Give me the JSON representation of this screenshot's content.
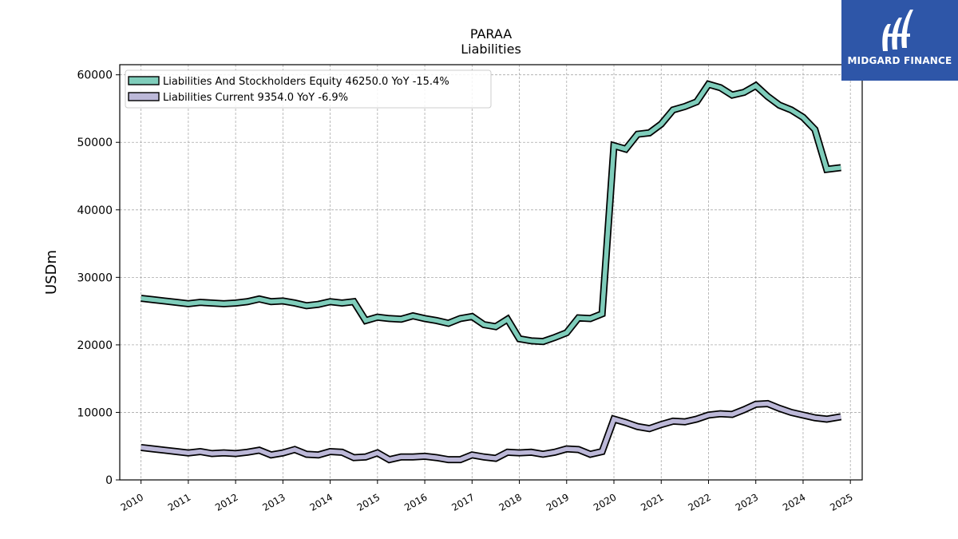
{
  "brand": {
    "name": "MIDGARD FINANCE",
    "logo_color": "#2e56a8"
  },
  "chart_data": {
    "type": "line",
    "title": "PARAA",
    "subtitle": "Liabilities",
    "xlabel": "",
    "ylabel": "USDm",
    "xlim": [
      2009.55,
      2025.25
    ],
    "ylim": [
      0,
      61500
    ],
    "yticks": [
      0,
      10000,
      20000,
      30000,
      40000,
      50000,
      60000
    ],
    "ytick_labels": [
      "0",
      "10000",
      "20000",
      "30000",
      "40000",
      "50000",
      "60000"
    ],
    "xticks": [
      2010,
      2011,
      2012,
      2013,
      2014,
      2015,
      2016,
      2017,
      2018,
      2019,
      2020,
      2021,
      2022,
      2023,
      2024,
      2025
    ],
    "xtick_labels": [
      "2010",
      "2011",
      "2012",
      "2013",
      "2014",
      "2015",
      "2016",
      "2017",
      "2018",
      "2019",
      "2020",
      "2021",
      "2022",
      "2023",
      "2024",
      "2025"
    ],
    "grid": true,
    "legend_position": "top-left",
    "series": [
      {
        "name": "Liabilities And Stockholders Equity",
        "legend_label": "Liabilities And Stockholders Equity  46250.0 YoY -15.4%",
        "color": "#7fcdbb",
        "points": [
          [
            2010.0,
            26900
          ],
          [
            2010.25,
            26700
          ],
          [
            2010.5,
            26500
          ],
          [
            2010.75,
            26300
          ],
          [
            2011.0,
            26100
          ],
          [
            2011.25,
            26300
          ],
          [
            2011.5,
            26200
          ],
          [
            2011.75,
            26100
          ],
          [
            2012.0,
            26200
          ],
          [
            2012.25,
            26400
          ],
          [
            2012.5,
            26800
          ],
          [
            2012.75,
            26400
          ],
          [
            2013.0,
            26500
          ],
          [
            2013.25,
            26200
          ],
          [
            2013.5,
            25800
          ],
          [
            2013.75,
            26000
          ],
          [
            2014.0,
            26400
          ],
          [
            2014.25,
            26200
          ],
          [
            2014.5,
            26400
          ],
          [
            2014.75,
            23600
          ],
          [
            2015.0,
            24100
          ],
          [
            2015.25,
            23900
          ],
          [
            2015.5,
            23800
          ],
          [
            2015.75,
            24300
          ],
          [
            2016.0,
            23900
          ],
          [
            2016.25,
            23600
          ],
          [
            2016.5,
            23200
          ],
          [
            2016.75,
            23900
          ],
          [
            2017.0,
            24200
          ],
          [
            2017.25,
            23000
          ],
          [
            2017.5,
            22700
          ],
          [
            2017.75,
            23800
          ],
          [
            2018.0,
            20900
          ],
          [
            2018.25,
            20600
          ],
          [
            2018.5,
            20500
          ],
          [
            2018.75,
            21100
          ],
          [
            2019.0,
            21800
          ],
          [
            2019.25,
            24000
          ],
          [
            2019.5,
            23900
          ],
          [
            2019.75,
            24600
          ],
          [
            2020.0,
            49500
          ],
          [
            2020.25,
            49000
          ],
          [
            2020.5,
            51200
          ],
          [
            2020.75,
            51400
          ],
          [
            2021.0,
            52700
          ],
          [
            2021.25,
            54800
          ],
          [
            2021.5,
            55300
          ],
          [
            2021.75,
            56000
          ],
          [
            2022.0,
            58600
          ],
          [
            2022.25,
            58100
          ],
          [
            2022.5,
            57000
          ],
          [
            2022.75,
            57400
          ],
          [
            2023.0,
            58400
          ],
          [
            2023.25,
            56800
          ],
          [
            2023.5,
            55500
          ],
          [
            2023.75,
            54800
          ],
          [
            2024.0,
            53700
          ],
          [
            2024.25,
            51900
          ],
          [
            2024.5,
            46000
          ],
          [
            2024.8,
            46250
          ]
        ]
      },
      {
        "name": "Liabilities Current",
        "legend_label": "Liabilities Current  9354.0 YoY -6.9%",
        "color": "#bcb8d8",
        "points": [
          [
            2010.0,
            4800
          ],
          [
            2010.25,
            4600
          ],
          [
            2010.5,
            4400
          ],
          [
            2010.75,
            4200
          ],
          [
            2011.0,
            4000
          ],
          [
            2011.25,
            4200
          ],
          [
            2011.5,
            3900
          ],
          [
            2011.75,
            4000
          ],
          [
            2012.0,
            3900
          ],
          [
            2012.25,
            4100
          ],
          [
            2012.5,
            4400
          ],
          [
            2012.75,
            3700
          ],
          [
            2013.0,
            4000
          ],
          [
            2013.25,
            4500
          ],
          [
            2013.5,
            3800
          ],
          [
            2013.75,
            3700
          ],
          [
            2014.0,
            4200
          ],
          [
            2014.25,
            4100
          ],
          [
            2014.5,
            3300
          ],
          [
            2014.75,
            3400
          ],
          [
            2015.0,
            4000
          ],
          [
            2015.25,
            3000
          ],
          [
            2015.5,
            3400
          ],
          [
            2015.75,
            3400
          ],
          [
            2016.0,
            3500
          ],
          [
            2016.25,
            3300
          ],
          [
            2016.5,
            3000
          ],
          [
            2016.75,
            3000
          ],
          [
            2017.0,
            3700
          ],
          [
            2017.25,
            3400
          ],
          [
            2017.5,
            3200
          ],
          [
            2017.75,
            4100
          ],
          [
            2018.0,
            4000
          ],
          [
            2018.25,
            4100
          ],
          [
            2018.5,
            3800
          ],
          [
            2018.75,
            4100
          ],
          [
            2019.0,
            4600
          ],
          [
            2019.25,
            4500
          ],
          [
            2019.5,
            3800
          ],
          [
            2019.75,
            4200
          ],
          [
            2020.0,
            9000
          ],
          [
            2020.25,
            8500
          ],
          [
            2020.5,
            7900
          ],
          [
            2020.75,
            7600
          ],
          [
            2021.0,
            8200
          ],
          [
            2021.25,
            8700
          ],
          [
            2021.5,
            8600
          ],
          [
            2021.75,
            9000
          ],
          [
            2022.0,
            9600
          ],
          [
            2022.25,
            9800
          ],
          [
            2022.5,
            9700
          ],
          [
            2022.75,
            10400
          ],
          [
            2023.0,
            11200
          ],
          [
            2023.25,
            11300
          ],
          [
            2023.5,
            10600
          ],
          [
            2023.75,
            10000
          ],
          [
            2024.0,
            9600
          ],
          [
            2024.25,
            9200
          ],
          [
            2024.5,
            9000
          ],
          [
            2024.8,
            9354
          ]
        ]
      }
    ]
  }
}
